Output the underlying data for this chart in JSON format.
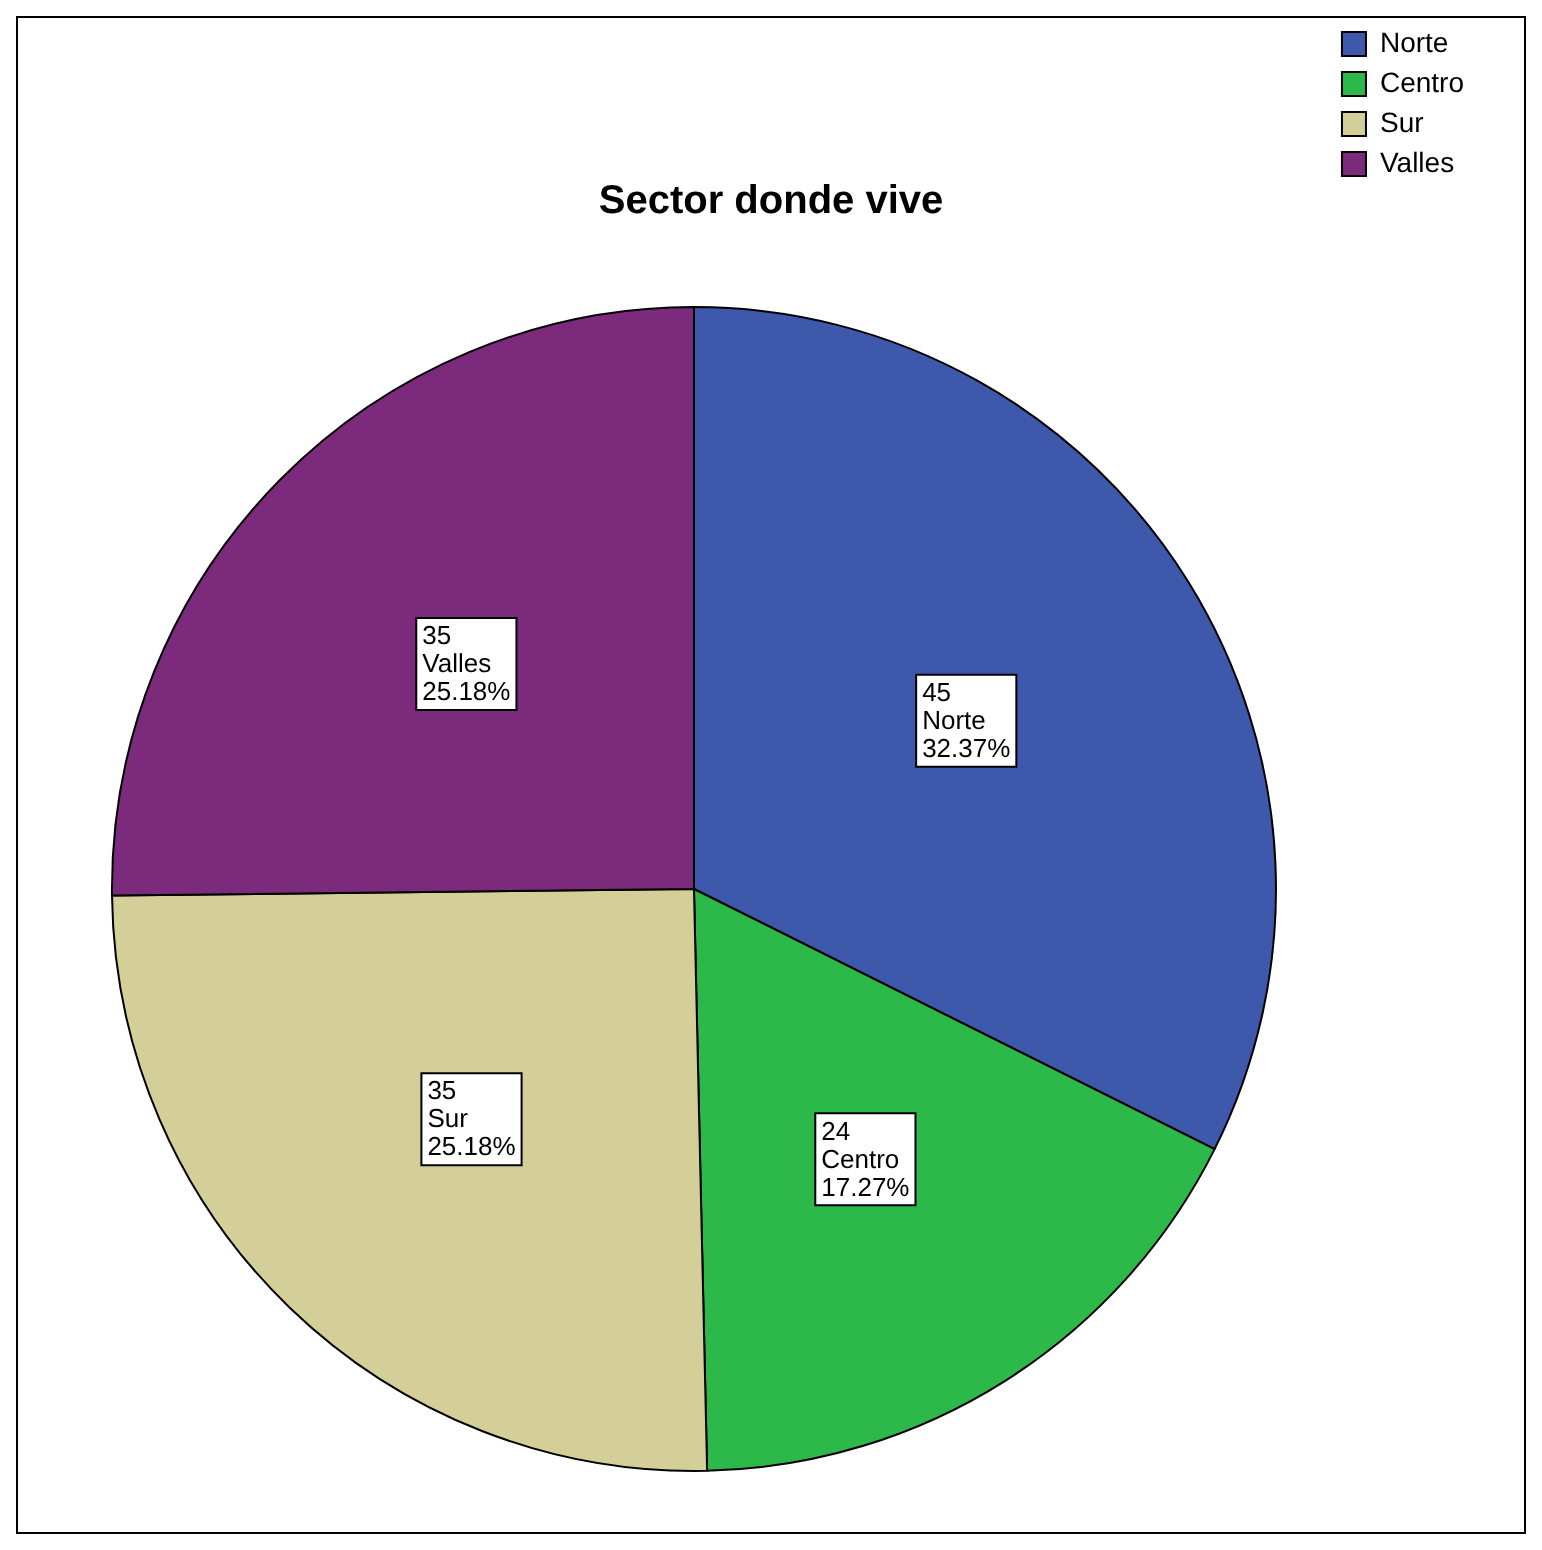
{
  "chart_data": {
    "type": "pie",
    "title": "Sector donde vive",
    "categories": [
      "Norte",
      "Centro",
      "Sur",
      "Valles"
    ],
    "values": [
      45,
      24,
      35,
      35
    ],
    "colors": [
      "#3e58ac",
      "#2db84a",
      "#d4ce98",
      "#7b2a7c"
    ],
    "value_labels": [
      "45\nNorte\n32.37%",
      "24\nCentro\n17.27%",
      "35\nSur\n25.18%",
      "35\nValles\n25.18%"
    ],
    "legend": "top right"
  }
}
